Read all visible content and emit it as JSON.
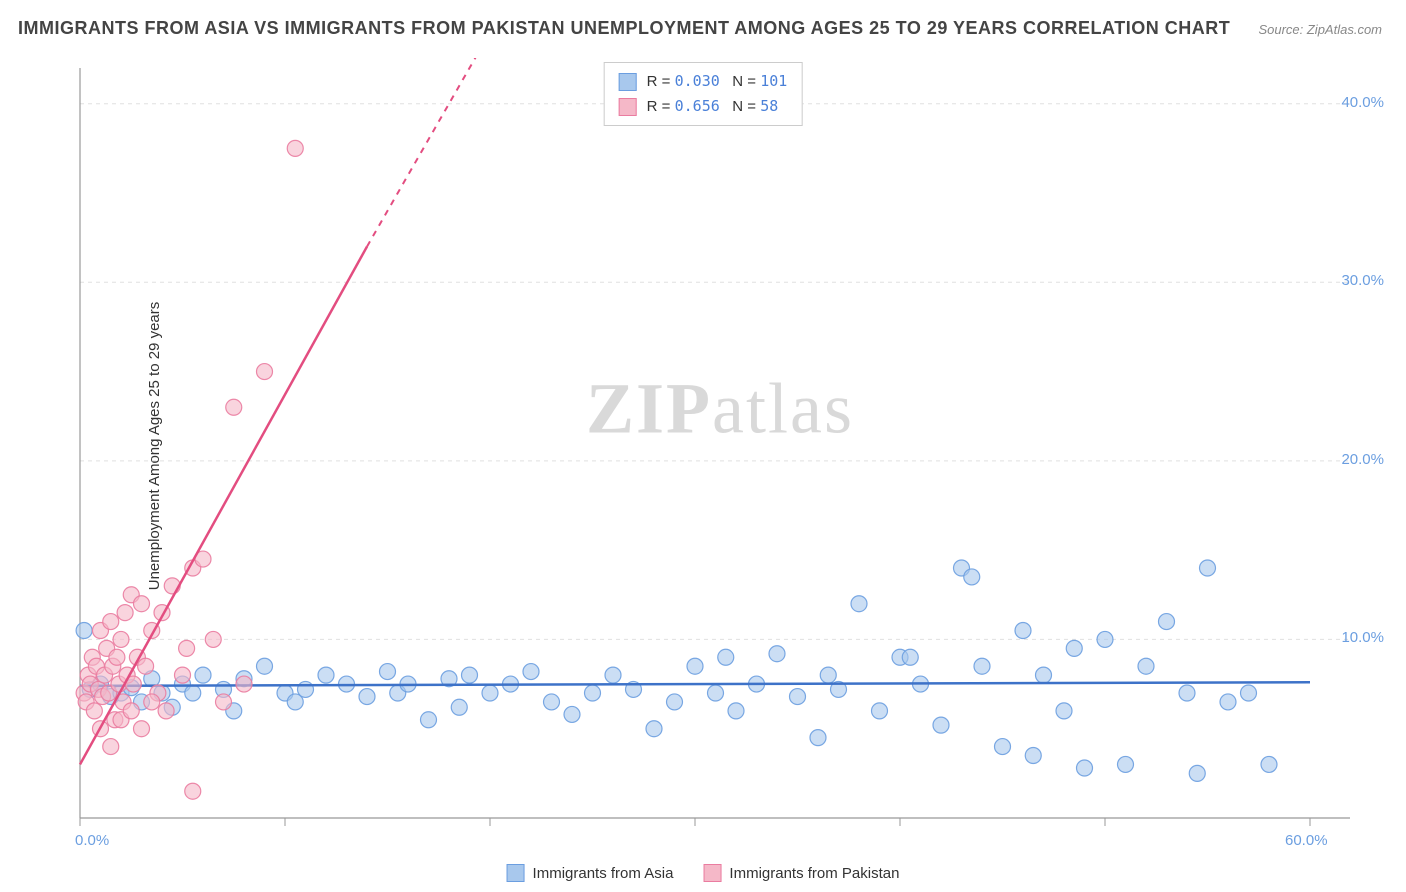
{
  "title": "IMMIGRANTS FROM ASIA VS IMMIGRANTS FROM PAKISTAN UNEMPLOYMENT AMONG AGES 25 TO 29 YEARS CORRELATION CHART",
  "source": "Source: ZipAtlas.com",
  "watermark": "ZIPatlas",
  "ylabel": "Unemployment Among Ages 25 to 29 years",
  "chart": {
    "type": "scatter",
    "xlim": [
      0,
      60
    ],
    "ylim": [
      0,
      42
    ],
    "xticks": [
      0,
      10,
      20,
      30,
      40,
      50,
      60
    ],
    "yticks": [
      10,
      20,
      30,
      40
    ],
    "xtick_labels": [
      "0.0%",
      "",
      "",
      "",
      "",
      "",
      "60.0%"
    ],
    "ytick_labels": [
      "10.0%",
      "20.0%",
      "30.0%",
      "40.0%"
    ],
    "grid_color": "#e0e0e0",
    "background_color": "#ffffff",
    "axis_color": "#999999",
    "series": [
      {
        "name": "Immigrants from Asia",
        "color_fill": "#a8c8ed",
        "color_stroke": "#6b9ee0",
        "marker_radius": 8,
        "marker_opacity": 0.6,
        "points": [
          [
            0.2,
            10.5
          ],
          [
            0.5,
            7.2
          ],
          [
            1,
            7.5
          ],
          [
            1.5,
            6.8
          ],
          [
            2,
            7
          ],
          [
            2.5,
            7.3
          ],
          [
            3,
            6.5
          ],
          [
            3.5,
            7.8
          ],
          [
            4,
            7
          ],
          [
            4.5,
            6.2
          ],
          [
            5,
            7.5
          ],
          [
            5.5,
            7
          ],
          [
            6,
            8
          ],
          [
            7,
            7.2
          ],
          [
            7.5,
            6
          ],
          [
            8,
            7.8
          ],
          [
            9,
            8.5
          ],
          [
            10,
            7
          ],
          [
            10.5,
            6.5
          ],
          [
            11,
            7.2
          ],
          [
            12,
            8
          ],
          [
            13,
            7.5
          ],
          [
            14,
            6.8
          ],
          [
            15,
            8.2
          ],
          [
            15.5,
            7
          ],
          [
            16,
            7.5
          ],
          [
            17,
            5.5
          ],
          [
            18,
            7.8
          ],
          [
            18.5,
            6.2
          ],
          [
            19,
            8
          ],
          [
            20,
            7
          ],
          [
            21,
            7.5
          ],
          [
            22,
            8.2
          ],
          [
            23,
            6.5
          ],
          [
            24,
            5.8
          ],
          [
            25,
            7
          ],
          [
            26,
            8
          ],
          [
            27,
            7.2
          ],
          [
            28,
            5
          ],
          [
            29,
            6.5
          ],
          [
            30,
            8.5
          ],
          [
            31,
            7
          ],
          [
            31.5,
            9
          ],
          [
            32,
            6
          ],
          [
            33,
            7.5
          ],
          [
            34,
            9.2
          ],
          [
            35,
            6.8
          ],
          [
            36,
            4.5
          ],
          [
            36.5,
            8
          ],
          [
            37,
            7.2
          ],
          [
            38,
            12
          ],
          [
            39,
            6
          ],
          [
            40,
            9
          ],
          [
            40.5,
            9
          ],
          [
            41,
            7.5
          ],
          [
            42,
            5.2
          ],
          [
            43,
            14
          ],
          [
            43.5,
            13.5
          ],
          [
            44,
            8.5
          ],
          [
            45,
            4
          ],
          [
            46,
            10.5
          ],
          [
            46.5,
            3.5
          ],
          [
            47,
            8
          ],
          [
            48,
            6
          ],
          [
            48.5,
            9.5
          ],
          [
            49,
            2.8
          ],
          [
            50,
            10
          ],
          [
            51,
            3
          ],
          [
            52,
            8.5
          ],
          [
            53,
            11
          ],
          [
            54,
            7
          ],
          [
            54.5,
            2.5
          ],
          [
            55,
            14
          ],
          [
            56,
            6.5
          ],
          [
            57,
            7
          ],
          [
            58,
            3
          ]
        ],
        "regression": {
          "x1": 0,
          "y1": 7.4,
          "x2": 60,
          "y2": 7.6,
          "color": "#3d72c8",
          "width": 2.5
        },
        "r": "0.030",
        "n": "101"
      },
      {
        "name": "Immigrants from Pakistan",
        "color_fill": "#f5b8c8",
        "color_stroke": "#ea7ca0",
        "marker_radius": 8,
        "marker_opacity": 0.6,
        "points": [
          [
            0.2,
            7
          ],
          [
            0.3,
            6.5
          ],
          [
            0.4,
            8
          ],
          [
            0.5,
            7.5
          ],
          [
            0.6,
            9
          ],
          [
            0.7,
            6
          ],
          [
            0.8,
            8.5
          ],
          [
            0.9,
            7.2
          ],
          [
            1,
            10.5
          ],
          [
            1.1,
            6.8
          ],
          [
            1.2,
            8
          ],
          [
            1.3,
            9.5
          ],
          [
            1.4,
            7
          ],
          [
            1.5,
            11
          ],
          [
            1.6,
            8.5
          ],
          [
            1.7,
            5.5
          ],
          [
            1.8,
            9
          ],
          [
            1.9,
            7.5
          ],
          [
            2,
            10
          ],
          [
            2.1,
            6.5
          ],
          [
            2.2,
            11.5
          ],
          [
            2.3,
            8
          ],
          [
            2.5,
            12.5
          ],
          [
            2.6,
            7.5
          ],
          [
            2.8,
            9
          ],
          [
            3,
            12
          ],
          [
            3.2,
            8.5
          ],
          [
            3.5,
            10.5
          ],
          [
            3.8,
            7
          ],
          [
            4,
            11.5
          ],
          [
            4.2,
            6
          ],
          [
            4.5,
            13
          ],
          [
            5,
            8
          ],
          [
            5.2,
            9.5
          ],
          [
            5.5,
            14
          ],
          [
            6,
            14.5
          ],
          [
            6.5,
            10
          ],
          [
            7,
            6.5
          ],
          [
            7.5,
            23
          ],
          [
            8,
            7.5
          ],
          [
            9,
            25
          ],
          [
            10.5,
            37.5
          ],
          [
            5.5,
            1.5
          ],
          [
            1.5,
            4
          ],
          [
            2,
            5.5
          ],
          [
            2.5,
            6
          ],
          [
            3,
            5
          ],
          [
            3.5,
            6.5
          ],
          [
            1,
            5
          ]
        ],
        "regression": {
          "x1": 0,
          "y1": 3,
          "x2": 14,
          "y2": 32,
          "color": "#e34d80",
          "width": 2.5,
          "dash_from_x": 14,
          "dash_to_x": 20,
          "dash_to_y": 44
        },
        "r": "0.656",
        "n": "58"
      }
    ]
  },
  "legend_top": {
    "rows": [
      {
        "swatch_fill": "#a8c8ed",
        "swatch_stroke": "#6b9ee0",
        "r_label": "R =",
        "r_val": "0.030",
        "n_label": "N =",
        "n_val": "101"
      },
      {
        "swatch_fill": "#f5b8c8",
        "swatch_stroke": "#ea7ca0",
        "r_label": "R =",
        "r_val": "0.656",
        "n_label": "N =",
        "n_val": " 58"
      }
    ]
  },
  "legend_bottom": {
    "items": [
      {
        "swatch_fill": "#a8c8ed",
        "swatch_stroke": "#6b9ee0",
        "label": "Immigrants from Asia"
      },
      {
        "swatch_fill": "#f5b8c8",
        "swatch_stroke": "#ea7ca0",
        "label": "Immigrants from Pakistan"
      }
    ]
  }
}
